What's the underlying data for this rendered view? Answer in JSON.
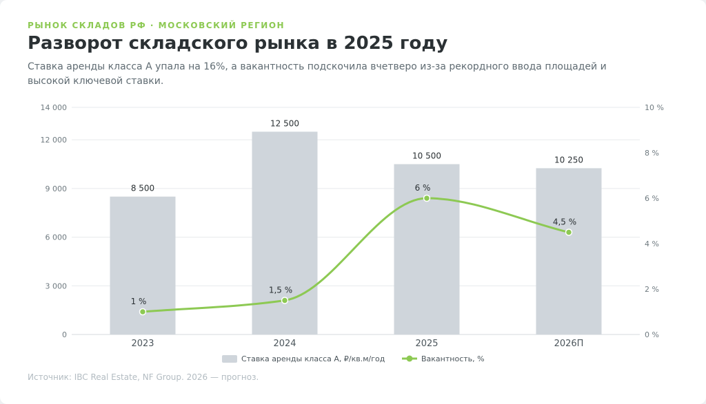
{
  "header": {
    "eyebrow": "РЫНОК СКЛАДОВ РФ · МОСКОВСКИЙ РЕГИОН",
    "title": "Разворот складского рынка в 2025 году",
    "subtitle": "Ставка аренды класса А упала на 16%, а вакантность подскочила вчетверо из-за рекордного ввода площадей и высокой ключевой ставки."
  },
  "footer": {
    "source": "Источник: IBC Real Estate, NF Group. 2026 — прогноз."
  },
  "chart_data": {
    "type": "bar",
    "categories": [
      "2023",
      "2024",
      "2025",
      "2026П"
    ],
    "series": [
      {
        "name": "Ставка аренды класса А, ₽/кв.м/год",
        "type": "bar",
        "axis": "left",
        "values": [
          8500,
          12500,
          10500,
          10250
        ],
        "labels": [
          "8 500",
          "12 500",
          "10 500",
          "10 250"
        ],
        "color": "#cfd5db"
      },
      {
        "name": "Вакантность, %",
        "type": "line",
        "axis": "right",
        "values": [
          1,
          1.5,
          6,
          4.5
        ],
        "labels": [
          "1 %",
          "1,5 %",
          "6 %",
          "4,5 %"
        ],
        "color": "#8dc953"
      }
    ],
    "y_left": {
      "range": [
        0,
        14000
      ],
      "ticks": [
        0,
        3000,
        6000,
        9000,
        12000,
        14000
      ],
      "tick_labels": [
        "0",
        "3 000",
        "6 000",
        "9 000",
        "12 000",
        "14 000"
      ]
    },
    "y_right": {
      "range": [
        0,
        10
      ],
      "ticks": [
        0,
        2,
        4,
        6,
        8,
        10
      ],
      "tick_labels": [
        "0 %",
        "2 %",
        "4 %",
        "6 %",
        "8 %",
        "10 %"
      ]
    },
    "grid": true,
    "legend": "bottom-center"
  }
}
